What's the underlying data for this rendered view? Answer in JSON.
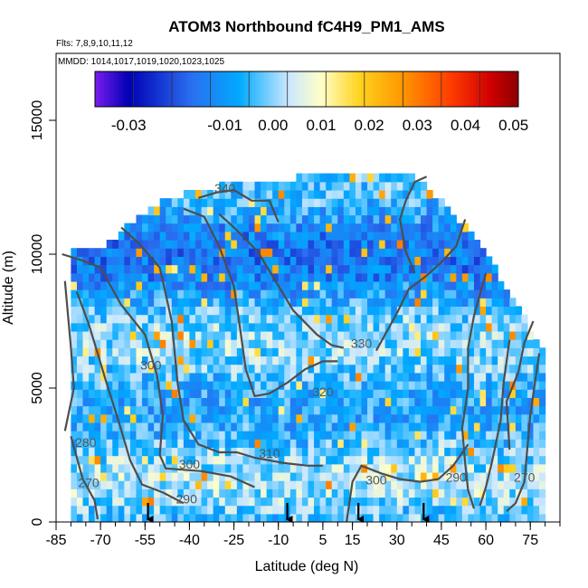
{
  "chart_data": {
    "type": "heatmap",
    "title": "ATOM3 Northbound fC4H9_PM1_AMS",
    "flights_note": "Flts: 7,8,9,10,11,12",
    "dates_note": "MMDD: 1014,1017,1019,1020,1023,1025",
    "xlabel": "Latitude (deg N)",
    "ylabel": "Altitude (m)",
    "xlim": [
      -85,
      85
    ],
    "ylim": [
      0,
      17500
    ],
    "x_ticks": [
      -85,
      -70,
      -55,
      -40,
      -25,
      -10,
      5,
      15,
      30,
      45,
      60,
      75
    ],
    "y_ticks": [
      0,
      5000,
      10000,
      15000
    ],
    "colorbar": {
      "range": [
        -0.037,
        0.051
      ],
      "ticks": [
        -0.03,
        -0.01,
        0.0,
        0.01,
        0.02,
        0.03,
        0.04,
        0.05
      ],
      "tick_labels": [
        "-0.03",
        "-0.01",
        "0.00",
        "0.01",
        "0.02",
        "0.03",
        "0.04",
        "0.05"
      ],
      "colors": [
        "#7a1cf0",
        "#0000b4",
        "#2a6ef0",
        "#00aaff",
        "#c8e6ff",
        "#ffffc8",
        "#ffd21e",
        "#ff9600",
        "#ff3c00",
        "#d20000",
        "#8b0000"
      ]
    },
    "contour_labels": [
      {
        "text": "340",
        "lat": -28,
        "alt": 12300
      },
      {
        "text": "330",
        "lat": 18,
        "alt": 6500
      },
      {
        "text": "320",
        "lat": 5,
        "alt": 4700
      },
      {
        "text": "310",
        "lat": -13,
        "alt": 2400
      },
      {
        "text": "300",
        "lat": -53,
        "alt": 5700
      },
      {
        "text": "300",
        "lat": -40,
        "alt": 2000
      },
      {
        "text": "300",
        "lat": 23,
        "alt": 1400
      },
      {
        "text": "290",
        "lat": -41,
        "alt": 700
      },
      {
        "text": "290",
        "lat": 50,
        "alt": 1500
      },
      {
        "text": "280",
        "lat": -75,
        "alt": 2800
      },
      {
        "text": "270",
        "lat": -74,
        "alt": 1300
      },
      {
        "text": "270",
        "lat": 73,
        "alt": 1500
      }
    ],
    "contours": [
      {
        "level": 340,
        "points": [
          [
            -37,
            12100
          ],
          [
            -31,
            12300
          ],
          [
            -25,
            12400
          ],
          [
            -19,
            12000
          ],
          [
            -13,
            12000
          ],
          [
            -10,
            11200
          ]
        ]
      },
      {
        "level": 340,
        "points": [
          [
            36,
            9300
          ],
          [
            33,
            10100
          ],
          [
            31,
            11300
          ],
          [
            33,
            12000
          ],
          [
            36,
            12700
          ],
          [
            40,
            12900
          ]
        ]
      },
      {
        "level": 330,
        "points": [
          [
            -30,
            11500
          ],
          [
            -25,
            11000
          ],
          [
            -17,
            10100
          ],
          [
            -11,
            9000
          ],
          [
            -5,
            7900
          ],
          [
            3,
            7000
          ],
          [
            8,
            6600
          ],
          [
            12,
            6500
          ]
        ]
      },
      {
        "level": 330,
        "points": [
          [
            23,
            6400
          ],
          [
            30,
            7800
          ],
          [
            34,
            8700
          ],
          [
            40,
            9200
          ],
          [
            45,
            9700
          ],
          [
            50,
            10300
          ],
          [
            53,
            11300
          ]
        ]
      },
      {
        "level": 320,
        "points": [
          [
            -42,
            11700
          ],
          [
            -35,
            11400
          ],
          [
            -30,
            10300
          ],
          [
            -25,
            8800
          ],
          [
            -23,
            7300
          ],
          [
            -21,
            5700
          ],
          [
            -18,
            4700
          ],
          [
            -13,
            4800
          ],
          [
            -7,
            5200
          ],
          [
            -1,
            5700
          ],
          [
            5,
            6000
          ],
          [
            10,
            6000
          ]
        ]
      },
      {
        "level": 310,
        "points": [
          [
            -63,
            11000
          ],
          [
            -57,
            10400
          ],
          [
            -50,
            9500
          ],
          [
            -46,
            7500
          ],
          [
            -44,
            5200
          ],
          [
            -42,
            3800
          ],
          [
            -37,
            2900
          ],
          [
            -30,
            2600
          ],
          [
            -24,
            2600
          ],
          [
            -18,
            2400
          ],
          [
            -8,
            2200
          ],
          [
            0,
            2100
          ],
          [
            5,
            2100
          ]
        ]
      },
      {
        "level": 300,
        "points": [
          [
            -83,
            10000
          ],
          [
            -77,
            9800
          ],
          [
            -70,
            9500
          ],
          [
            -63,
            8100
          ],
          [
            -55,
            7000
          ],
          [
            -51,
            5500
          ],
          [
            -49,
            4000
          ],
          [
            -50,
            2500
          ],
          [
            -48,
            2000
          ],
          [
            -36,
            1900
          ],
          [
            -26,
            1700
          ],
          [
            -18,
            1300
          ]
        ]
      },
      {
        "level": 300,
        "points": [
          [
            13,
            0
          ],
          [
            15,
            1500
          ],
          [
            18,
            2100
          ],
          [
            25,
            1800
          ],
          [
            31,
            1600
          ],
          [
            38,
            1500
          ],
          [
            44,
            1600
          ],
          [
            49,
            2100
          ],
          [
            54,
            2900
          ]
        ]
      },
      {
        "level": 290,
        "points": [
          [
            -78,
            8600
          ],
          [
            -74,
            7400
          ],
          [
            -71,
            6300
          ],
          [
            -68,
            5200
          ],
          [
            -64,
            3800
          ],
          [
            -60,
            2300
          ],
          [
            -56,
            1400
          ],
          [
            -49,
            1100
          ],
          [
            -42,
            700
          ]
        ]
      },
      {
        "level": 290,
        "points": [
          [
            56,
            500
          ],
          [
            54,
            1200
          ],
          [
            53,
            2200
          ],
          [
            52,
            3500
          ],
          [
            54,
            5000
          ],
          [
            54,
            6500
          ],
          [
            56,
            7700
          ],
          [
            60,
            9300
          ]
        ]
      },
      {
        "level": 280,
        "points": [
          [
            -82,
            9000
          ],
          [
            -80,
            6500
          ],
          [
            -79,
            5000
          ],
          [
            -82,
            3400
          ]
        ]
      },
      {
        "level": 270,
        "points": [
          [
            -80,
            3200
          ],
          [
            -76,
            1600
          ],
          [
            -72,
            800
          ],
          [
            -71,
            100
          ]
        ]
      },
      {
        "level": 270,
        "points": [
          [
            78,
            6300
          ],
          [
            75,
            4000
          ],
          [
            73,
            1500
          ],
          [
            70,
            700
          ],
          [
            67,
            400
          ]
        ]
      },
      {
        "level": 280,
        "points": [
          [
            68,
            6800
          ],
          [
            66,
            5200
          ],
          [
            65,
            3800
          ],
          [
            62,
            2200
          ],
          [
            60,
            1300
          ],
          [
            58,
            600
          ]
        ]
      },
      {
        "level": 310,
        "points": [
          [
            68,
            2700
          ],
          [
            67,
            4500
          ],
          [
            71,
            5600
          ],
          [
            73,
            6700
          ],
          [
            76,
            7500
          ]
        ]
      }
    ],
    "flight_markers": [
      -54,
      -7,
      17,
      39
    ]
  }
}
